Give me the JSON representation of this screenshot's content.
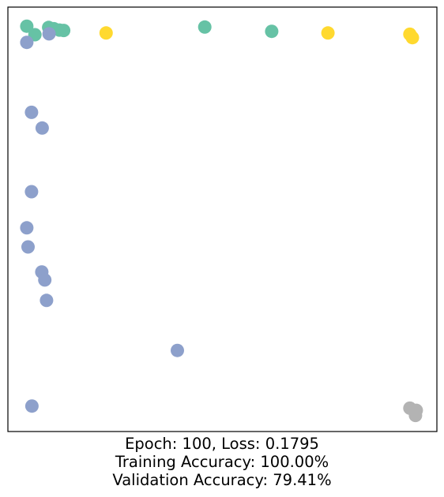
{
  "chart_data": {
    "type": "scatter",
    "title": "",
    "xlabel": "",
    "ylabel": "",
    "axes_visible_ticks": false,
    "grid": false,
    "xlim": [
      0,
      1
    ],
    "ylim": [
      0,
      1
    ],
    "colors": {
      "class_0": "#66c2a5",
      "class_1": "#8da0cb",
      "class_2": "#ffd92f",
      "class_3": "#b3b3b3"
    },
    "series": [
      {
        "class": "class_0",
        "points": [
          {
            "x": 0.044,
            "y": 0.955
          },
          {
            "x": 0.063,
            "y": 0.935
          },
          {
            "x": 0.095,
            "y": 0.952
          },
          {
            "x": 0.107,
            "y": 0.949
          },
          {
            "x": 0.12,
            "y": 0.946
          },
          {
            "x": 0.13,
            "y": 0.945
          },
          {
            "x": 0.459,
            "y": 0.953
          },
          {
            "x": 0.615,
            "y": 0.943
          }
        ]
      },
      {
        "class": "class_1",
        "points": [
          {
            "x": 0.044,
            "y": 0.917
          },
          {
            "x": 0.096,
            "y": 0.937
          },
          {
            "x": 0.055,
            "y": 0.752
          },
          {
            "x": 0.08,
            "y": 0.715
          },
          {
            "x": 0.055,
            "y": 0.565
          },
          {
            "x": 0.044,
            "y": 0.48
          },
          {
            "x": 0.047,
            "y": 0.435
          },
          {
            "x": 0.079,
            "y": 0.376
          },
          {
            "x": 0.086,
            "y": 0.357
          },
          {
            "x": 0.09,
            "y": 0.309
          },
          {
            "x": 0.395,
            "y": 0.191
          },
          {
            "x": 0.056,
            "y": 0.06
          }
        ]
      },
      {
        "class": "class_2",
        "points": [
          {
            "x": 0.229,
            "y": 0.939
          },
          {
            "x": 0.746,
            "y": 0.939
          },
          {
            "x": 0.937,
            "y": 0.936
          },
          {
            "x": 0.943,
            "y": 0.928
          }
        ]
      },
      {
        "class": "class_3",
        "points": [
          {
            "x": 0.937,
            "y": 0.055
          },
          {
            "x": 0.952,
            "y": 0.05
          },
          {
            "x": 0.95,
            "y": 0.038
          }
        ]
      }
    ]
  },
  "caption": {
    "line1": "Epoch: 100, Loss: 0.1795",
    "line2": "Training Accuracy: 100.00%",
    "line3": "Validation Accuracy: 79.41%"
  }
}
